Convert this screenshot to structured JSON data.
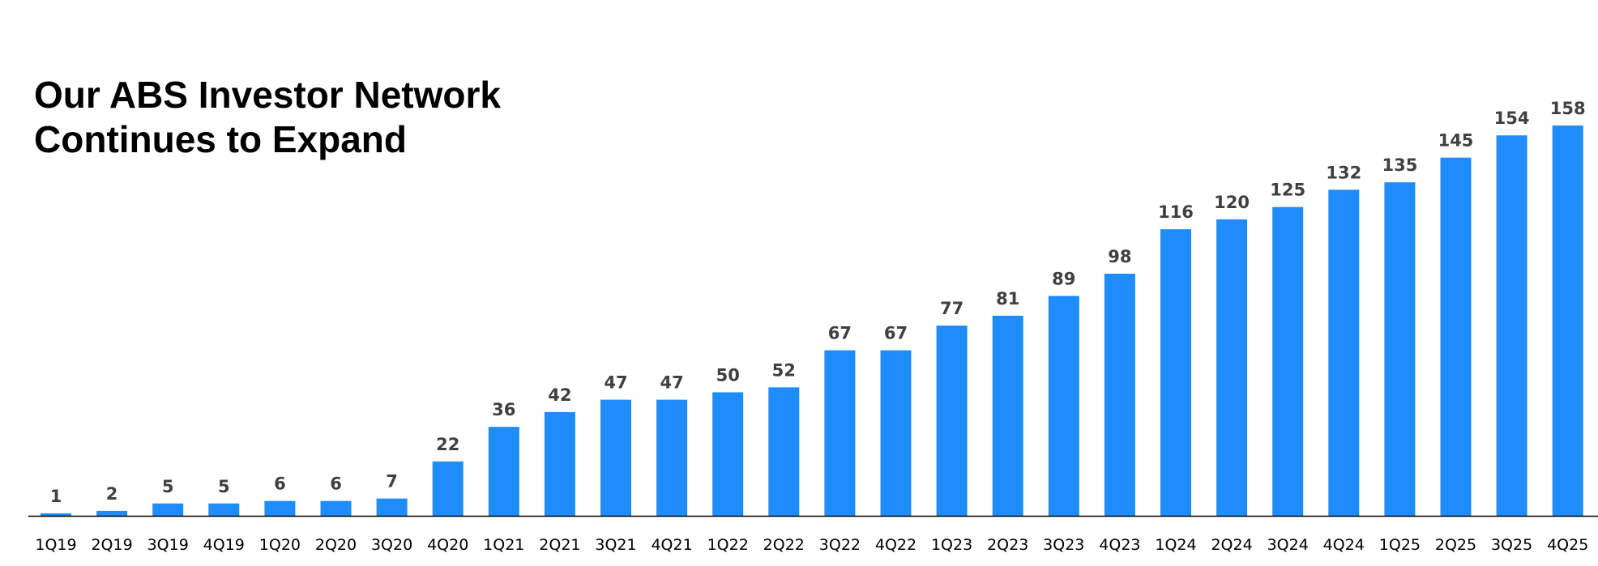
{
  "chart_data": {
    "type": "bar",
    "title_lines": [
      "Our ABS Investor Network",
      "Continues to Expand"
    ],
    "categories": [
      "1Q19",
      "2Q19",
      "3Q19",
      "4Q19",
      "1Q20",
      "2Q20",
      "3Q20",
      "4Q20",
      "1Q21",
      "2Q21",
      "3Q21",
      "4Q21",
      "1Q22",
      "2Q22",
      "3Q22",
      "4Q22",
      "1Q23",
      "2Q23",
      "3Q23",
      "4Q23",
      "1Q24",
      "2Q24",
      "3Q24",
      "4Q24",
      "1Q25",
      "2Q25",
      "3Q25",
      "4Q25"
    ],
    "values": [
      1,
      2,
      5,
      5,
      6,
      6,
      7,
      22,
      36,
      42,
      47,
      47,
      50,
      52,
      67,
      67,
      77,
      81,
      89,
      98,
      116,
      120,
      125,
      132,
      135,
      145,
      154,
      158
    ],
    "data_labels": [
      "1",
      "2",
      "5",
      "5",
      "6",
      "6",
      "7",
      "22",
      "36",
      "42",
      "47",
      "47",
      "50",
      "52",
      "67",
      "67",
      "77",
      "81",
      "89",
      "98",
      "116",
      "120",
      "125",
      "132",
      "135",
      "145",
      "154",
      "158"
    ],
    "xlabel": "",
    "ylabel": "",
    "ylim": [
      0,
      160
    ],
    "grid": false,
    "legend": "none",
    "bar_color": "#1E8CFA",
    "label_color": "#404040",
    "axis_color": "#000000"
  }
}
